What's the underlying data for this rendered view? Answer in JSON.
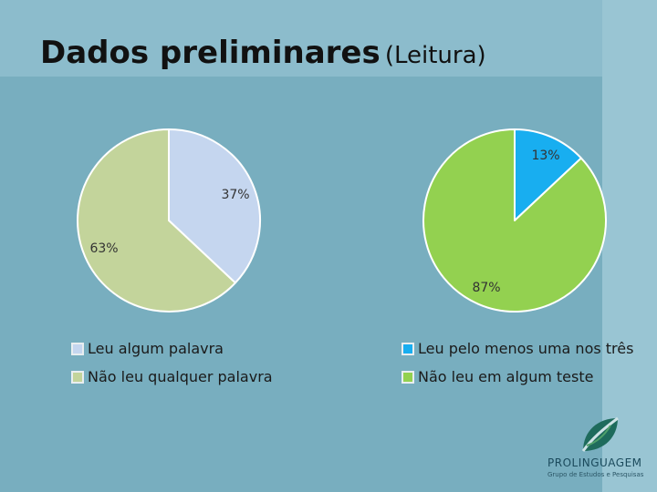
{
  "title": {
    "main": "Dados preliminares",
    "sub": "(Leitura)"
  },
  "chart_data": [
    {
      "type": "pie",
      "slices": [
        {
          "label": "Leu algum palavra",
          "value": 37,
          "label_text": "37%",
          "color": "#c5d6ef"
        },
        {
          "label": "Não leu qualquer palavra",
          "value": 63,
          "label_text": "63%",
          "color": "#c3d49b"
        }
      ],
      "legend": [
        "Leu algum palavra",
        "Não leu qualquer palavra"
      ]
    },
    {
      "type": "pie",
      "slices": [
        {
          "label": "Leu pelo menos uma nos três",
          "value": 13,
          "label_text": "13%",
          "color": "#18aef0"
        },
        {
          "label": "Não leu em algum teste",
          "value": 87,
          "label_text": "87%",
          "color": "#93d150"
        }
      ],
      "legend": [
        "Leu pelo menos uma nos três",
        "Não leu em algum teste"
      ]
    }
  ],
  "logo": {
    "name": "PROLINGUAGEM",
    "subtitle": "Grupo de Estudos e Pesquisas"
  }
}
